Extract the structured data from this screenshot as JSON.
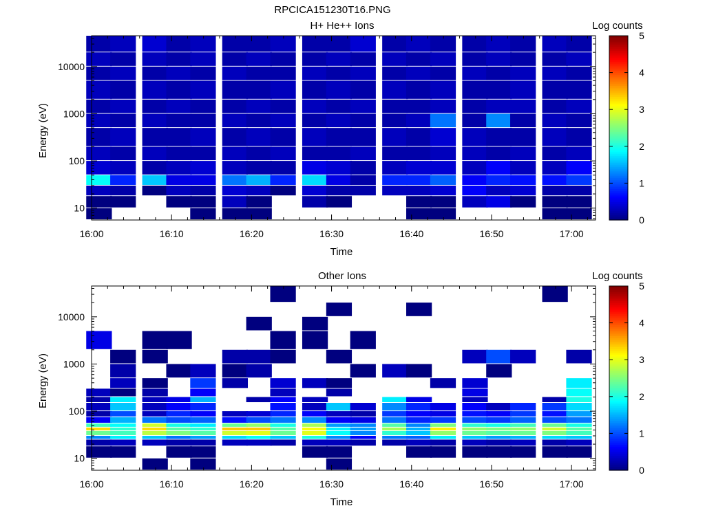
{
  "figure": {
    "title": "RPCICA151230T16.PNG"
  },
  "colormap": {
    "name": "jet",
    "stops": [
      "#00007f",
      "#0000ff",
      "#007fff",
      "#00ffff",
      "#7fff7f",
      "#ffff00",
      "#ff7f00",
      "#ff0000",
      "#7f0000"
    ]
  },
  "chart_data": [
    {
      "type": "heatmap",
      "title": "H+ He++ Ions",
      "xlabel": "Time",
      "ylabel": "Energy (eV)",
      "colorbar_label": "Log counts",
      "colorbar_ticks": [
        "0",
        "1",
        "2",
        "3",
        "4",
        "5"
      ],
      "colorbar_range": [
        0,
        5
      ],
      "xlim": [
        "16:00",
        "17:03"
      ],
      "x_ticks": [
        "16:00",
        "16:10",
        "16:20",
        "16:30",
        "16:40",
        "16:50",
        "17:00"
      ],
      "y_scale": "log",
      "ylim": [
        5.6,
        45000
      ],
      "y_ticks": [
        "10",
        "100",
        "1000",
        "10000"
      ],
      "grid": false,
      "time_bins": [
        "16:01",
        "16:04",
        "16:08",
        "16:11",
        "16:14",
        "16:18",
        "16:21",
        "16:24",
        "16:28",
        "16:31",
        "16:34",
        "16:38",
        "16:41",
        "16:44",
        "16:48",
        "16:51",
        "16:54",
        "16:58",
        "17:01"
      ],
      "energy_bin_edges": [
        5.6,
        10,
        18,
        30,
        50,
        100,
        200,
        500,
        1000,
        2000,
        5000,
        10000,
        20000,
        45000
      ],
      "log_counts": [
        [
          0.0,
          -1,
          -1,
          -1,
          0.0,
          0.0,
          0.0,
          -1,
          -1,
          -1,
          -1,
          -1,
          0.0,
          0.0,
          -1,
          -1,
          -1,
          0.0,
          0.0
        ],
        [
          0.0,
          0.0,
          -1,
          0.0,
          0.0,
          0.3,
          0.0,
          -1,
          0.2,
          0.0,
          -1,
          -1,
          0.0,
          0.0,
          0.3,
          0.5,
          0.0,
          0.0,
          0.0
        ],
        [
          0.3,
          0.2,
          0.0,
          0.3,
          0.2,
          0.4,
          0.3,
          0.0,
          0.4,
          0.2,
          0.2,
          0.3,
          0.3,
          0.4,
          0.6,
          0.3,
          0.4,
          0.2,
          0.2
        ],
        [
          1.9,
          0.8,
          1.6,
          0.5,
          0.5,
          1.2,
          1.5,
          0.8,
          1.7,
          0.5,
          0.2,
          0.8,
          0.8,
          1.1,
          0.6,
          0.8,
          0.7,
          0.7,
          0.9
        ],
        [
          0.4,
          0.3,
          0.2,
          0.3,
          0.4,
          0.3,
          0.2,
          0.2,
          0.5,
          0.4,
          0.2,
          0.3,
          0.4,
          0.4,
          0.3,
          0.6,
          0.3,
          0.3,
          0.6
        ],
        [
          0.3,
          0.2,
          0.3,
          0.2,
          0.2,
          0.3,
          0.2,
          0.3,
          0.2,
          0.2,
          0.3,
          0.2,
          0.2,
          0.3,
          0.3,
          0.2,
          0.3,
          0.2,
          0.3
        ],
        [
          0.2,
          0.3,
          0.2,
          0.2,
          0.3,
          0.2,
          0.3,
          0.2,
          0.3,
          0.2,
          0.2,
          0.3,
          0.2,
          0.4,
          0.3,
          0.2,
          0.2,
          0.3,
          0.2
        ],
        [
          0.3,
          0.2,
          0.3,
          0.2,
          0.2,
          0.3,
          0.2,
          0.3,
          0.2,
          0.3,
          0.2,
          0.2,
          0.3,
          1.2,
          0.2,
          1.3,
          0.2,
          0.3,
          0.2
        ],
        [
          0.2,
          0.3,
          0.2,
          0.3,
          0.2,
          0.2,
          0.3,
          0.2,
          0.3,
          0.2,
          0.3,
          0.2,
          0.2,
          0.3,
          0.2,
          0.3,
          0.3,
          0.2,
          0.3
        ],
        [
          0.3,
          0.2,
          0.3,
          0.2,
          0.3,
          0.2,
          0.2,
          0.3,
          0.2,
          0.3,
          0.2,
          0.3,
          0.2,
          0.3,
          0.2,
          0.2,
          0.3,
          0.2,
          0.2
        ],
        [
          0.2,
          0.3,
          0.2,
          0.3,
          0.2,
          0.3,
          0.2,
          0.2,
          0.3,
          0.2,
          0.3,
          0.2,
          0.3,
          0.2,
          0.3,
          0.2,
          0.3,
          0.3,
          0.2
        ],
        [
          0.3,
          0.2,
          0.3,
          0.2,
          0.3,
          0.2,
          0.3,
          0.2,
          0.2,
          0.3,
          0.2,
          0.3,
          0.2,
          0.3,
          0.2,
          0.3,
          0.2,
          0.2,
          0.3
        ],
        [
          0.2,
          0.3,
          0.4,
          0.2,
          0.3,
          0.2,
          0.2,
          0.3,
          0.2,
          0.2,
          0.4,
          0.2,
          0.3,
          0.2,
          0.2,
          0.3,
          0.2,
          0.3,
          0.2
        ]
      ]
    },
    {
      "type": "heatmap",
      "title": "Other Ions",
      "xlabel": "Time",
      "ylabel": "Energy (eV)",
      "colorbar_label": "Log counts",
      "colorbar_ticks": [
        "0",
        "1",
        "2",
        "3",
        "4",
        "5"
      ],
      "colorbar_range": [
        0,
        5
      ],
      "xlim": [
        "16:00",
        "17:03"
      ],
      "x_ticks": [
        "16:00",
        "16:10",
        "16:20",
        "16:30",
        "16:40",
        "16:50",
        "17:00"
      ],
      "y_scale": "log",
      "ylim": [
        5.6,
        45000
      ],
      "y_ticks": [
        "10",
        "100",
        "1000",
        "10000"
      ],
      "grid": false,
      "time_bins": [
        "16:01",
        "16:04",
        "16:08",
        "16:11",
        "16:14",
        "16:18",
        "16:21",
        "16:24",
        "16:28",
        "16:31",
        "16:34",
        "16:38",
        "16:41",
        "16:44",
        "16:48",
        "16:51",
        "16:54",
        "16:58",
        "17:01"
      ],
      "energy_bin_edges": [
        5.6,
        10,
        18,
        25,
        30,
        38,
        45,
        55,
        75,
        100,
        150,
        200,
        300,
        500,
        1000,
        2000,
        5000,
        10000,
        20000,
        45000
      ],
      "log_counts": [
        [
          -1,
          -1,
          0.0,
          -1,
          0.0,
          -1,
          -1,
          -1,
          -1,
          0.0,
          -1,
          -1,
          -1,
          -1,
          -1,
          -1,
          -1,
          -1,
          -1
        ],
        [
          0.0,
          0.0,
          -1,
          0.0,
          0.0,
          -1,
          -1,
          -1,
          0.0,
          0.0,
          -1,
          -1,
          0.0,
          0.0,
          0.0,
          0.0,
          0.0,
          0.0,
          0.0
        ],
        [
          0.2,
          0.3,
          0.3,
          0.2,
          0.2,
          0.3,
          0.3,
          0.2,
          0.3,
          0.3,
          0.2,
          0.2,
          0.3,
          0.2,
          0.3,
          0.2,
          0.3,
          0.2,
          0.3
        ],
        [
          1.3,
          1.8,
          1.6,
          1.2,
          1.4,
          1.7,
          1.9,
          1.6,
          2.0,
          1.3,
          0.6,
          1.2,
          1.1,
          1.8,
          1.6,
          1.4,
          1.5,
          1.7,
          1.6
        ],
        [
          2.4,
          2.2,
          2.8,
          2.5,
          2.3,
          2.9,
          3.0,
          2.4,
          3.0,
          1.9,
          1.3,
          2.1,
          1.6,
          2.6,
          2.4,
          2.3,
          2.4,
          2.5,
          2.2
        ],
        [
          3.3,
          2.1,
          3.3,
          2.3,
          2.1,
          3.4,
          3.4,
          2.3,
          3.1,
          1.8,
          1.4,
          2.7,
          1.5,
          3.2,
          2.6,
          2.5,
          2.6,
          2.9,
          2.3
        ],
        [
          2.2,
          1.9,
          2.9,
          2.0,
          1.8,
          2.4,
          2.6,
          2.0,
          2.7,
          1.4,
          1.3,
          2.3,
          1.3,
          2.5,
          2.1,
          2.0,
          2.2,
          2.4,
          2.0
        ],
        [
          0.6,
          1.5,
          1.2,
          1.0,
          1.1,
          0.7,
          1.0,
          1.2,
          1.3,
          0.6,
          0.5,
          1.2,
          0.8,
          0.9,
          1.0,
          0.9,
          1.1,
          1.0,
          1.2
        ],
        [
          0.2,
          1.0,
          0.3,
          0.8,
          0.6,
          0.3,
          0.4,
          0.8,
          0.6,
          0.3,
          0.2,
          0.9,
          0.6,
          0.5,
          0.7,
          0.6,
          0.9,
          0.7,
          1.4
        ],
        [
          0.3,
          1.6,
          0.3,
          0.6,
          0.8,
          -1,
          -1,
          0.7,
          0.3,
          1.6,
          0.4,
          1.3,
          0.8,
          0.5,
          0.6,
          0.3,
          0.8,
          0.9,
          1.7
        ],
        [
          0.2,
          1.8,
          0.3,
          0.5,
          1.5,
          -1,
          0.2,
          0.6,
          0.3,
          -1,
          -1,
          1.8,
          0.5,
          -1,
          0.3,
          -1,
          -1,
          0.2,
          2.0
        ],
        [
          0.3,
          0.0,
          0.2,
          -1,
          0.6,
          -1,
          -1,
          0.3,
          -1,
          0.2,
          -1,
          -1,
          -1,
          -1,
          0.5,
          -1,
          -1,
          -1,
          1.9
        ],
        [
          -1,
          0.3,
          0.0,
          -1,
          0.9,
          0.2,
          -1,
          0.4,
          0.3,
          0.0,
          -1,
          -1,
          -1,
          0.2,
          0.4,
          -1,
          -1,
          -1,
          1.8
        ],
        [
          -1,
          0.2,
          -1,
          0.0,
          0.3,
          0.0,
          0.2,
          -1,
          -1,
          -1,
          0.0,
          0.3,
          0.0,
          -1,
          -1,
          0.0,
          -1,
          -1,
          -1
        ],
        [
          -1,
          0.0,
          0.0,
          -1,
          -1,
          0.2,
          0.2,
          0.0,
          -1,
          0.0,
          -1,
          -1,
          -1,
          -1,
          0.3,
          1.0,
          0.3,
          -1,
          0.2
        ],
        [
          0.5,
          -1,
          0.0,
          0.0,
          -1,
          -1,
          -1,
          0.0,
          0.0,
          -1,
          0.0,
          -1,
          -1,
          -1,
          -1,
          -1,
          -1,
          -1,
          -1
        ],
        [
          -1,
          -1,
          -1,
          -1,
          -1,
          -1,
          0.0,
          -1,
          0.0,
          -1,
          -1,
          -1,
          -1,
          -1,
          -1,
          -1,
          -1,
          -1,
          -1
        ],
        [
          -1,
          -1,
          -1,
          -1,
          -1,
          -1,
          -1,
          -1,
          -1,
          0.0,
          -1,
          -1,
          0.0,
          -1,
          -1,
          -1,
          -1,
          -1,
          -1
        ],
        [
          -1,
          -1,
          -1,
          -1,
          -1,
          -1,
          -1,
          0.0,
          -1,
          -1,
          -1,
          -1,
          -1,
          -1,
          -1,
          -1,
          -1,
          0.0,
          -1
        ]
      ]
    }
  ]
}
